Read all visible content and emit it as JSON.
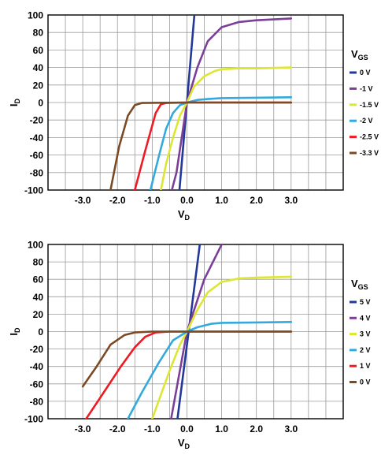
{
  "chart_data": [
    {
      "type": "line",
      "xlabel": "V",
      "xlabel_sub": "D",
      "ylabel": "I",
      "ylabel_sub": "D",
      "xlim": [
        -4.0,
        4.5
      ],
      "ylim": [
        -100,
        100
      ],
      "x_ticks": [
        -3.0,
        -2.0,
        -1.0,
        0.0,
        1.0,
        2.0,
        3.0
      ],
      "x_tick_labels": [
        "-3.0",
        "-2.0",
        "-1.0",
        "0.0",
        "1.0",
        "2.0",
        "3.0"
      ],
      "y_ticks": [
        100,
        80,
        60,
        40,
        20,
        0,
        -20,
        -40,
        -60,
        -80,
        -100
      ],
      "y_tick_labels": [
        "100",
        "80",
        "60",
        "40",
        "20",
        "0",
        "-20",
        "-40",
        "-60",
        "-80",
        "-100"
      ],
      "grid": true,
      "legend": {
        "title": "V",
        "title_sub": "GS",
        "position": "right"
      },
      "series": [
        {
          "name": "0 V",
          "color": "#24389a",
          "points": [
            [
              -0.3,
              -140
            ],
            [
              0.3,
              140
            ]
          ]
        },
        {
          "name": "-1 V",
          "color": "#7b3f98",
          "points": [
            [
              -0.5,
              -110
            ],
            [
              -0.3,
              -80
            ],
            [
              0,
              0
            ],
            [
              0.3,
              40
            ],
            [
              0.6,
              70
            ],
            [
              1.0,
              86
            ],
            [
              1.5,
              92
            ],
            [
              2.0,
              94
            ],
            [
              2.5,
              95
            ],
            [
              3.0,
              96
            ]
          ]
        },
        {
          "name": "-1.5 V",
          "color": "#dde633",
          "points": [
            [
              -0.8,
              -110
            ],
            [
              -0.6,
              -70
            ],
            [
              -0.4,
              -40
            ],
            [
              -0.2,
              -15
            ],
            [
              0,
              0
            ],
            [
              0.2,
              18
            ],
            [
              0.5,
              30
            ],
            [
              0.8,
              36
            ],
            [
              1.0,
              38
            ],
            [
              1.5,
              39
            ],
            [
              2.0,
              39
            ],
            [
              3.0,
              40
            ]
          ]
        },
        {
          "name": "-2 V",
          "color": "#33a9dc",
          "points": [
            [
              -1.05,
              -100
            ],
            [
              -0.8,
              -60
            ],
            [
              -0.6,
              -30
            ],
            [
              -0.4,
              -12
            ],
            [
              -0.2,
              -3
            ],
            [
              0,
              0
            ],
            [
              0.3,
              3
            ],
            [
              0.6,
              4
            ],
            [
              1.0,
              5
            ],
            [
              2.0,
              5.5
            ],
            [
              3.0,
              6
            ]
          ]
        },
        {
          "name": "-2.5 V",
          "color": "#ed1c24",
          "points": [
            [
              -1.5,
              -100
            ],
            [
              -1.2,
              -55
            ],
            [
              -0.9,
              -12
            ],
            [
              -0.75,
              -2
            ],
            [
              -0.6,
              -0.5
            ],
            [
              0,
              0
            ],
            [
              3.0,
              0
            ]
          ]
        },
        {
          "name": "-3.3 V",
          "color": "#7b4a25",
          "points": [
            [
              -2.2,
              -100
            ],
            [
              -1.95,
              -50
            ],
            [
              -1.7,
              -15
            ],
            [
              -1.5,
              -3
            ],
            [
              -1.3,
              -0.5
            ],
            [
              0,
              0
            ],
            [
              3.0,
              0
            ]
          ]
        }
      ]
    },
    {
      "type": "line",
      "xlabel": "V",
      "xlabel_sub": "D",
      "ylabel": "I",
      "ylabel_sub": "D",
      "xlim": [
        -4.0,
        4.5
      ],
      "ylim": [
        -100,
        100
      ],
      "x_ticks": [
        -3.0,
        -2.0,
        -1.0,
        0.0,
        1.0,
        2.0,
        3.0
      ],
      "x_tick_labels": [
        "-3.0",
        "-2.0",
        "-1.0",
        "0.0",
        "1.0",
        "2.0",
        "3.0"
      ],
      "y_ticks": [
        100,
        80,
        60,
        40,
        20,
        0,
        -20,
        -40,
        -60,
        -80,
        -100
      ],
      "y_tick_labels": [
        "100",
        "80",
        "60",
        "40",
        "20",
        "0",
        "-20",
        "-40",
        "-60",
        "-80",
        "-100"
      ],
      "grid": true,
      "legend": {
        "title": "V",
        "title_sub": "GS",
        "position": "right"
      },
      "series": [
        {
          "name": "5 V",
          "color": "#24389a",
          "points": [
            [
              -0.4,
              -140
            ],
            [
              0.5,
              140
            ]
          ]
        },
        {
          "name": "4 V",
          "color": "#7b3f98",
          "points": [
            [
              -0.5,
              -110
            ],
            [
              0,
              0
            ],
            [
              0.5,
              60
            ],
            [
              1.0,
              100
            ],
            [
              1.15,
              112
            ]
          ]
        },
        {
          "name": "3 V",
          "color": "#dde633",
          "points": [
            [
              -1.0,
              -100
            ],
            [
              -0.5,
              -45
            ],
            [
              -0.2,
              -15
            ],
            [
              0,
              0
            ],
            [
              0.3,
              25
            ],
            [
              0.6,
              45
            ],
            [
              1.0,
              57
            ],
            [
              1.5,
              61
            ],
            [
              2.0,
              62
            ],
            [
              3.0,
              63
            ]
          ]
        },
        {
          "name": "2 V",
          "color": "#33a9dc",
          "points": [
            [
              -1.7,
              -100
            ],
            [
              -1.3,
              -70
            ],
            [
              -0.8,
              -35
            ],
            [
              -0.4,
              -10
            ],
            [
              0,
              0
            ],
            [
              0.3,
              5
            ],
            [
              0.7,
              9
            ],
            [
              1.0,
              10
            ],
            [
              2.0,
              10.5
            ],
            [
              3.0,
              11
            ]
          ]
        },
        {
          "name": "1 V",
          "color": "#ed1c24",
          "points": [
            [
              -2.9,
              -100
            ],
            [
              -2.4,
              -70
            ],
            [
              -1.9,
              -40
            ],
            [
              -1.5,
              -18
            ],
            [
              -1.2,
              -6
            ],
            [
              -0.9,
              -1
            ],
            [
              -0.5,
              0
            ],
            [
              3.0,
              0
            ]
          ]
        },
        {
          "name": "0 V",
          "color": "#7b4a25",
          "points": [
            [
              -3.0,
              -63
            ],
            [
              -2.6,
              -40
            ],
            [
              -2.2,
              -15
            ],
            [
              -1.8,
              -4
            ],
            [
              -1.5,
              -1
            ],
            [
              -1.0,
              0
            ],
            [
              3.0,
              0
            ]
          ]
        }
      ]
    }
  ]
}
